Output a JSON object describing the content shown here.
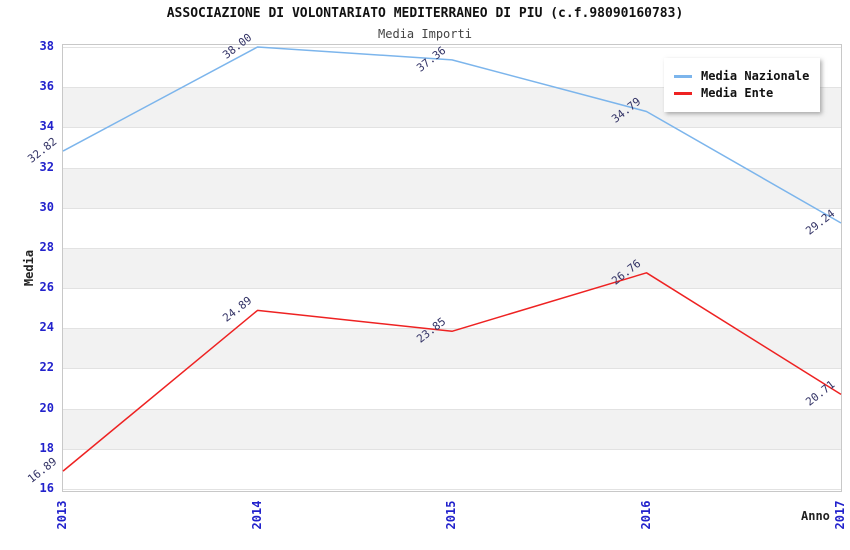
{
  "title": "ASSOCIAZIONE DI VOLONTARIATO MEDITERRANEO DI PIU (c.f.98090160783)",
  "subtitle": "Media Importi",
  "chart_data": {
    "type": "line",
    "x": [
      2013,
      2014,
      2015,
      2016,
      2017
    ],
    "series": [
      {
        "name": "Media Nazionale",
        "color": "#7cb5ec",
        "values": [
          32.82,
          38.0,
          37.36,
          34.79,
          29.24
        ]
      },
      {
        "name": "Media Ente",
        "color": "#ee2222",
        "values": [
          16.89,
          24.89,
          23.85,
          26.76,
          20.71
        ]
      }
    ],
    "xlabel": "Anno",
    "ylabel": "Media",
    "ylim": [
      16,
      38
    ],
    "ytick_step": 2,
    "yticks": [
      16,
      18,
      20,
      22,
      24,
      26,
      28,
      30,
      32,
      34,
      36,
      38
    ],
    "grid": "horizontal-bands-alternating",
    "legend_position": "top-right",
    "point_label_format": "two-decimals"
  },
  "colors": {
    "axis_tick_label": "#2222cc",
    "data_label": "#333366",
    "band_fill": "#f2f2f2",
    "gridline": "#e2e2e2",
    "plot_border": "#c8c8c8"
  }
}
